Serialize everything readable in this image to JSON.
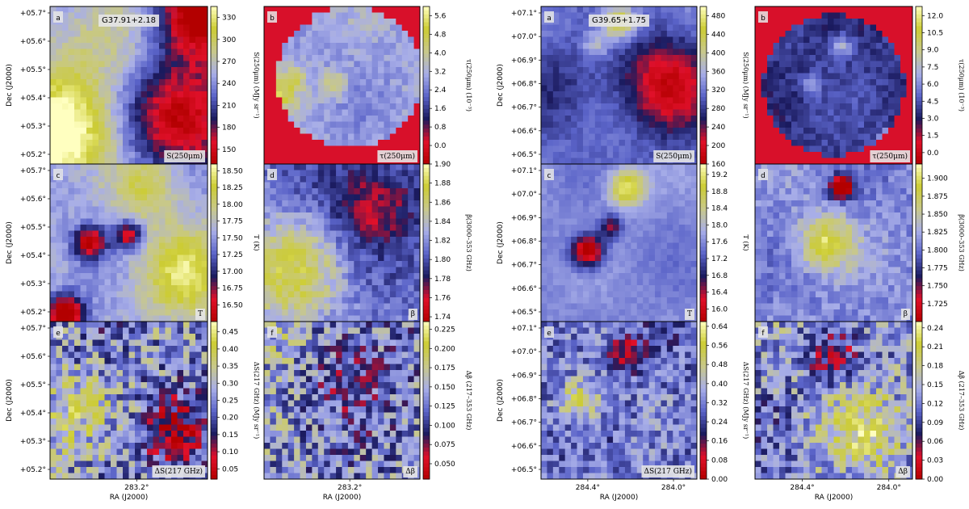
{
  "figure": {
    "background": "#ffffff"
  },
  "chart_data": [
    {
      "type": "heatmap",
      "field": "G37.91+2.18",
      "xlabel": "RA (J2000)",
      "ylabel": "Dec (J2000)",
      "xticks": [
        "283.2°"
      ],
      "yticks": [
        "+05.7°",
        "+05.6°",
        "+05.5°",
        "+05.4°",
        "+05.3°",
        "+05.2°"
      ],
      "panels": [
        {
          "id": "a",
          "corner_label": "S(250μm)",
          "title_box": "G37.91+2.18",
          "cmap_label": "S(250μm) (MJy sr⁻¹)",
          "cb_ticks": [
            "330",
            "300",
            "270",
            "240",
            "210",
            "180",
            "150"
          ],
          "cb_range": [
            130,
            345
          ],
          "cb_decimals": 0,
          "seed": 11,
          "blobs": [
            {
              "x": 0.05,
              "y": 0.85,
              "amp": 0.5,
              "s": 0.25
            },
            {
              "x": 0.95,
              "y": 0.05,
              "amp": -0.6,
              "s": 0.2
            },
            {
              "x": 0.85,
              "y": 0.7,
              "amp": -0.55,
              "s": 0.25
            },
            {
              "x": 0.3,
              "y": 0.3,
              "amp": 0.15,
              "s": 0.3
            }
          ],
          "base": 0.55,
          "noise": 0.05,
          "mask": "none"
        },
        {
          "id": "b",
          "corner_label": "τ(250μm)",
          "cmap_label": "τ(250μm) (10⁻³)",
          "cb_ticks": [
            "5.6",
            "4.8",
            "4.0",
            "3.2",
            "2.4",
            "1.6",
            "0.8",
            "0.0"
          ],
          "cb_range": [
            -0.8,
            6.0
          ],
          "cb_decimals": 1,
          "seed": 23,
          "blobs": [
            {
              "x": 0.1,
              "y": 0.55,
              "amp": 0.25,
              "s": 0.08
            },
            {
              "x": 0.45,
              "y": 0.5,
              "amp": 0.2,
              "s": 0.06
            },
            {
              "x": 0.2,
              "y": 0.45,
              "amp": 0.15,
              "s": 0.05
            }
          ],
          "base": 0.55,
          "noise": 0.06,
          "mask": "region"
        },
        {
          "id": "c",
          "corner_label": "T",
          "cmap_label": "T (K)",
          "cb_ticks": [
            "18.50",
            "18.25",
            "18.00",
            "17.75",
            "17.50",
            "17.25",
            "17.00",
            "16.75",
            "16.50"
          ],
          "cb_range": [
            16.25,
            18.6
          ],
          "cb_decimals": 2,
          "seed": 37,
          "blobs": [
            {
              "x": 0.1,
              "y": 0.95,
              "amp": -0.7,
              "s": 0.08
            },
            {
              "x": 0.25,
              "y": 0.5,
              "amp": -0.55,
              "s": 0.07
            },
            {
              "x": 0.5,
              "y": 0.45,
              "amp": -0.5,
              "s": 0.06
            },
            {
              "x": 0.85,
              "y": 0.7,
              "amp": 0.35,
              "s": 0.2
            },
            {
              "x": 0.6,
              "y": 0.15,
              "amp": 0.25,
              "s": 0.15
            }
          ],
          "base": 0.55,
          "noise": 0.05,
          "mask": "none"
        },
        {
          "id": "d",
          "corner_label": "β",
          "cmap_label": "β(3000–353 GHz)",
          "cb_ticks": [
            "1.90",
            "1.88",
            "1.86",
            "1.84",
            "1.82",
            "1.80",
            "1.78",
            "1.76",
            "1.74"
          ],
          "cb_range": [
            1.735,
            1.9
          ],
          "cb_decimals": 2,
          "seed": 41,
          "blobs": [
            {
              "x": 0.15,
              "y": 0.7,
              "amp": 0.35,
              "s": 0.25
            },
            {
              "x": 0.7,
              "y": 0.25,
              "amp": -0.3,
              "s": 0.2
            }
          ],
          "base": 0.45,
          "noise": 0.08,
          "mask": "none"
        },
        {
          "id": "e",
          "corner_label": "ΔS(217 GHz)",
          "cmap_label": "ΔS(217 GHz) (MJy sr⁻¹)",
          "cb_ticks": [
            "0.45",
            "0.40",
            "0.35",
            "0.30",
            "0.25",
            "0.20",
            "0.15",
            "0.10",
            "0.05"
          ],
          "cb_range": [
            0.02,
            0.48
          ],
          "cb_decimals": 2,
          "seed": 53,
          "blobs": [
            {
              "x": 0.1,
              "y": 0.6,
              "amp": 0.2,
              "s": 0.2
            },
            {
              "x": 0.8,
              "y": 0.7,
              "amp": -0.35,
              "s": 0.15
            }
          ],
          "base": 0.5,
          "noise": 0.22,
          "mask": "none"
        },
        {
          "id": "f",
          "corner_label": "Δβ",
          "cmap_label": "Δβ (217–353 GHz)",
          "cb_ticks": [
            "0.225",
            "0.200",
            "0.175",
            "0.150",
            "0.125",
            "0.100",
            "0.075",
            "0.050"
          ],
          "cb_range": [
            0.03,
            0.235
          ],
          "cb_decimals": 3,
          "seed": 67,
          "blobs": [
            {
              "x": 0.5,
              "y": 0.3,
              "amp": -0.15,
              "s": 0.25
            },
            {
              "x": 0.1,
              "y": 0.1,
              "amp": 0.2,
              "s": 0.2
            }
          ],
          "base": 0.5,
          "noise": 0.22,
          "mask": "none"
        }
      ]
    },
    {
      "type": "heatmap",
      "field": "G39.65+1.75",
      "xlabel": "RA (J2000)",
      "ylabel": "Dec (J2000)",
      "xticks": [
        "284.4°",
        "284.0°"
      ],
      "yticks": [
        "+07.1°",
        "+07.0°",
        "+06.9°",
        "+06.8°",
        "+06.7°",
        "+06.6°",
        "+06.5°"
      ],
      "panels": [
        {
          "id": "a",
          "corner_label": "S(250μm)",
          "title_box": "G39.65+1.75",
          "cmap_label": "S(250μm) (MJy sr⁻¹)",
          "cb_ticks": [
            "480",
            "440",
            "400",
            "360",
            "320",
            "280",
            "240",
            "200",
            "160"
          ],
          "cb_range": [
            160,
            500
          ],
          "cb_decimals": 0,
          "seed": 71,
          "blobs": [
            {
              "x": 0.5,
              "y": 0.1,
              "amp": 0.45,
              "s": 0.08
            },
            {
              "x": 0.35,
              "y": 0.25,
              "amp": 0.2,
              "s": 0.06
            },
            {
              "x": 0.8,
              "y": 0.5,
              "amp": -0.4,
              "s": 0.2
            },
            {
              "x": 0.1,
              "y": 0.5,
              "amp": -0.1,
              "s": 0.2
            }
          ],
          "base": 0.45,
          "noise": 0.04,
          "mask": "none"
        },
        {
          "id": "b",
          "corner_label": "τ(250μm)",
          "cmap_label": "τ(250μm) (10⁻³)",
          "cb_ticks": [
            "12.0",
            "10.5",
            "9.0",
            "7.5",
            "6.0",
            "4.5",
            "3.0",
            "1.5",
            "0.0"
          ],
          "cb_range": [
            -1.0,
            12.8
          ],
          "cb_decimals": 1,
          "seed": 83,
          "blobs": [
            {
              "x": 0.55,
              "y": 0.25,
              "amp": 0.25,
              "s": 0.05
            },
            {
              "x": 0.35,
              "y": 0.5,
              "amp": 0.2,
              "s": 0.04
            },
            {
              "x": 0.85,
              "y": 0.85,
              "amp": 0.5,
              "s": 0.04
            }
          ],
          "base": 0.35,
          "noise": 0.05,
          "mask": "circle"
        },
        {
          "id": "c",
          "corner_label": "T",
          "cmap_label": "T (K)",
          "cb_ticks": [
            "19.2",
            "18.8",
            "18.4",
            "18.0",
            "17.6",
            "17.2",
            "16.8",
            "16.4",
            "16.0"
          ],
          "cb_range": [
            15.7,
            19.45
          ],
          "cb_decimals": 1,
          "seed": 97,
          "blobs": [
            {
              "x": 0.55,
              "y": 0.15,
              "amp": 0.45,
              "s": 0.08
            },
            {
              "x": 0.3,
              "y": 0.55,
              "amp": -0.6,
              "s": 0.07
            },
            {
              "x": 0.45,
              "y": 0.4,
              "amp": -0.3,
              "s": 0.05
            }
          ],
          "base": 0.5,
          "noise": 0.03,
          "mask": "none"
        },
        {
          "id": "d",
          "corner_label": "β",
          "cmap_label": "β(3000–353 GHz)",
          "cb_ticks": [
            "1.900",
            "1.875",
            "1.850",
            "1.825",
            "1.800",
            "1.775",
            "1.750",
            "1.725"
          ],
          "cb_range": [
            1.7,
            1.92
          ],
          "cb_decimals": 3,
          "seed": 101,
          "blobs": [
            {
              "x": 0.55,
              "y": 0.15,
              "amp": -0.7,
              "s": 0.05
            },
            {
              "x": 0.45,
              "y": 0.5,
              "amp": 0.4,
              "s": 0.12
            }
          ],
          "base": 0.5,
          "noise": 0.07,
          "mask": "none"
        },
        {
          "id": "e",
          "corner_label": "ΔS(217 GHz)",
          "cmap_label": "ΔS(217 GHz) (MJy sr⁻¹)",
          "cb_ticks": [
            "0.64",
            "0.56",
            "0.48",
            "0.40",
            "0.32",
            "0.24",
            "0.16",
            "0.08",
            "0.00"
          ],
          "cb_range": [
            0.0,
            0.66
          ],
          "cb_decimals": 2,
          "seed": 113,
          "blobs": [
            {
              "x": 0.25,
              "y": 0.5,
              "amp": 0.35,
              "s": 0.1
            },
            {
              "x": 0.55,
              "y": 0.2,
              "amp": -0.3,
              "s": 0.08
            }
          ],
          "base": 0.45,
          "noise": 0.15,
          "mask": "none"
        },
        {
          "id": "f",
          "corner_label": "Δβ",
          "cmap_label": "Δβ (217–353 GHz)",
          "cb_ticks": [
            "0.24",
            "0.21",
            "0.18",
            "0.15",
            "0.12",
            "0.09",
            "0.06",
            "0.03",
            "0.00"
          ],
          "cb_range": [
            0.0,
            0.25
          ],
          "cb_decimals": 2,
          "seed": 127,
          "blobs": [
            {
              "x": 0.5,
              "y": 0.25,
              "amp": -0.3,
              "s": 0.1
            },
            {
              "x": 0.7,
              "y": 0.7,
              "amp": 0.3,
              "s": 0.2
            }
          ],
          "base": 0.5,
          "noise": 0.2,
          "mask": "none"
        }
      ]
    }
  ],
  "colormap": [
    "#b30000",
    "#e0102a",
    "#1a1a5e",
    "#5a63c8",
    "#a8aee8",
    "#c8c88a",
    "#cccc33",
    "#ffffc0"
  ]
}
